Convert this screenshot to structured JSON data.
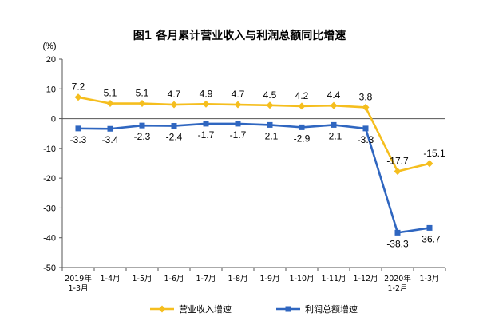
{
  "chart_data": {
    "type": "line",
    "title": "图1  各月累计营业收入与利润总额同比增速",
    "ylabel": "(%)",
    "ylim": [
      -50,
      20
    ],
    "yticks": [
      20,
      10,
      0,
      -10,
      -20,
      -30,
      -40,
      -50
    ],
    "categories": [
      [
        "2019年",
        "1-3月"
      ],
      [
        "1-4月"
      ],
      [
        "1-5月"
      ],
      [
        "1-6月"
      ],
      [
        "1-7月"
      ],
      [
        "1-8月"
      ],
      [
        "1-9月"
      ],
      [
        "1-10月"
      ],
      [
        "1-11月"
      ],
      [
        "1-12月"
      ],
      [
        "2020年",
        "1-2月"
      ],
      [
        "1-3月"
      ]
    ],
    "series": [
      {
        "name": "营业收入增速",
        "color": "#F5BE1E",
        "marker": "diamond",
        "values": [
          7.2,
          5.1,
          5.1,
          4.7,
          4.9,
          4.7,
          4.5,
          4.2,
          4.4,
          3.8,
          -17.7,
          -15.1
        ]
      },
      {
        "name": "利润总额增速",
        "color": "#2F66C0",
        "marker": "square",
        "values": [
          -3.3,
          -3.4,
          -2.3,
          -2.4,
          -1.7,
          -1.7,
          -2.1,
          -2.9,
          -2.1,
          -3.3,
          -38.3,
          -36.7
        ]
      }
    ],
    "legend_position": "bottom"
  }
}
